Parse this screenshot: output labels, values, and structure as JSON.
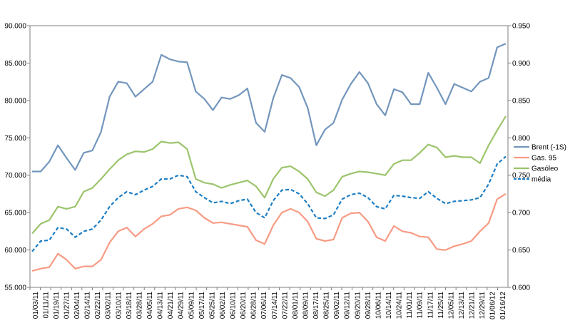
{
  "chart_data": {
    "type": "line",
    "title": "",
    "xlabel": "",
    "ylabel": "",
    "ylim_left": [
      55,
      90
    ],
    "ylim_right": [
      0.6,
      0.95
    ],
    "y_ticks_left": [
      "55.000",
      "60.000",
      "65.000",
      "70.000",
      "75.000",
      "80.000",
      "85.000",
      "90.000"
    ],
    "y_ticks_right": [
      "0.600",
      "0.650",
      "0.700",
      "0.750",
      "0.800",
      "0.850",
      "0.900",
      "0.950"
    ],
    "x_ticks": [
      "01/03/11",
      "01/11/11",
      "01/19/11",
      "01/27/11",
      "02/04/11",
      "02/14/11",
      "02/22/11",
      "03/02/11",
      "03/10/11",
      "03/18/11",
      "03/28/11",
      "04/05/11",
      "04/13/11",
      "04/21/11",
      "04/29/11",
      "05/09/11",
      "05/17/11",
      "05/25/11",
      "06/02/11",
      "06/10/11",
      "06/20/11",
      "06/28/11",
      "07/06/11",
      "07/14/11",
      "07/22/11",
      "08/01/11",
      "08/09/11",
      "08/17/11",
      "08/25/11",
      "09/02/11",
      "09/12/11",
      "09/20/11",
      "09/28/11",
      "10/06/11",
      "10/14/11",
      "10/24/11",
      "11/01/11",
      "11/09/11",
      "11/17/11",
      "11/25/11",
      "12/05/11",
      "12/13/11",
      "12/21/11",
      "12/29/11",
      "01/06/12",
      "01/16/12"
    ],
    "gridlines": false,
    "legend_position": "right",
    "series": [
      {
        "name": "Brent (-1S)",
        "axis": "left",
        "color": "#7396bd",
        "dash": false,
        "values": [
          70.5,
          70.5,
          71.8,
          74.0,
          72.3,
          70.7,
          73.0,
          73.3,
          75.8,
          80.5,
          82.5,
          82.3,
          80.5,
          81.5,
          82.5,
          86.1,
          85.5,
          85.2,
          85.1,
          81.2,
          80.2,
          78.7,
          80.4,
          80.2,
          80.7,
          81.6,
          77.0,
          75.8,
          80.3,
          83.4,
          83.0,
          81.8,
          79.0,
          74.0,
          76.1,
          77.0,
          80.1,
          82.2,
          83.8,
          82.3,
          79.5,
          78.0,
          81.5,
          81.1,
          79.5,
          79.5,
          83.7,
          81.7,
          79.5,
          82.2,
          81.7,
          81.2,
          82.5,
          83.0,
          87.1,
          87.6
        ]
      },
      {
        "name": "Gas. 95",
        "axis": "right",
        "color": "#f79b84",
        "dash": false,
        "values": [
          0.622,
          0.625,
          0.627,
          0.645,
          0.637,
          0.625,
          0.628,
          0.628,
          0.637,
          0.66,
          0.675,
          0.68,
          0.668,
          0.678,
          0.685,
          0.695,
          0.697,
          0.705,
          0.707,
          0.703,
          0.693,
          0.686,
          0.687,
          0.685,
          0.683,
          0.681,
          0.663,
          0.658,
          0.683,
          0.7,
          0.705,
          0.7,
          0.688,
          0.665,
          0.662,
          0.664,
          0.693,
          0.699,
          0.7,
          0.688,
          0.667,
          0.662,
          0.682,
          0.675,
          0.673,
          0.668,
          0.667,
          0.651,
          0.65,
          0.655,
          0.658,
          0.662,
          0.675,
          0.686,
          0.718,
          0.725
        ]
      },
      {
        "name": "Gasóleo",
        "axis": "right",
        "color": "#9cc46c",
        "dash": false,
        "values": [
          0.672,
          0.685,
          0.69,
          0.708,
          0.705,
          0.708,
          0.728,
          0.733,
          0.745,
          0.758,
          0.77,
          0.778,
          0.782,
          0.781,
          0.785,
          0.795,
          0.793,
          0.794,
          0.785,
          0.745,
          0.74,
          0.738,
          0.733,
          0.737,
          0.74,
          0.743,
          0.735,
          0.72,
          0.745,
          0.76,
          0.762,
          0.755,
          0.745,
          0.727,
          0.722,
          0.73,
          0.748,
          0.752,
          0.755,
          0.754,
          0.752,
          0.75,
          0.765,
          0.77,
          0.77,
          0.78,
          0.791,
          0.787,
          0.774,
          0.776,
          0.774,
          0.774,
          0.766,
          0.79,
          0.81,
          0.829
        ]
      },
      {
        "name": "média",
        "axis": "right",
        "color": "#1d7ec5",
        "dash": true,
        "values": [
          0.648,
          0.662,
          0.663,
          0.68,
          0.678,
          0.667,
          0.675,
          0.678,
          0.69,
          0.708,
          0.72,
          0.728,
          0.724,
          0.73,
          0.735,
          0.745,
          0.745,
          0.75,
          0.748,
          0.728,
          0.72,
          0.713,
          0.715,
          0.712,
          0.716,
          0.718,
          0.7,
          0.693,
          0.716,
          0.73,
          0.731,
          0.725,
          0.712,
          0.693,
          0.692,
          0.697,
          0.718,
          0.724,
          0.726,
          0.72,
          0.708,
          0.705,
          0.723,
          0.722,
          0.72,
          0.719,
          0.728,
          0.719,
          0.712,
          0.715,
          0.716,
          0.717,
          0.72,
          0.738,
          0.765,
          0.775
        ]
      }
    ]
  }
}
